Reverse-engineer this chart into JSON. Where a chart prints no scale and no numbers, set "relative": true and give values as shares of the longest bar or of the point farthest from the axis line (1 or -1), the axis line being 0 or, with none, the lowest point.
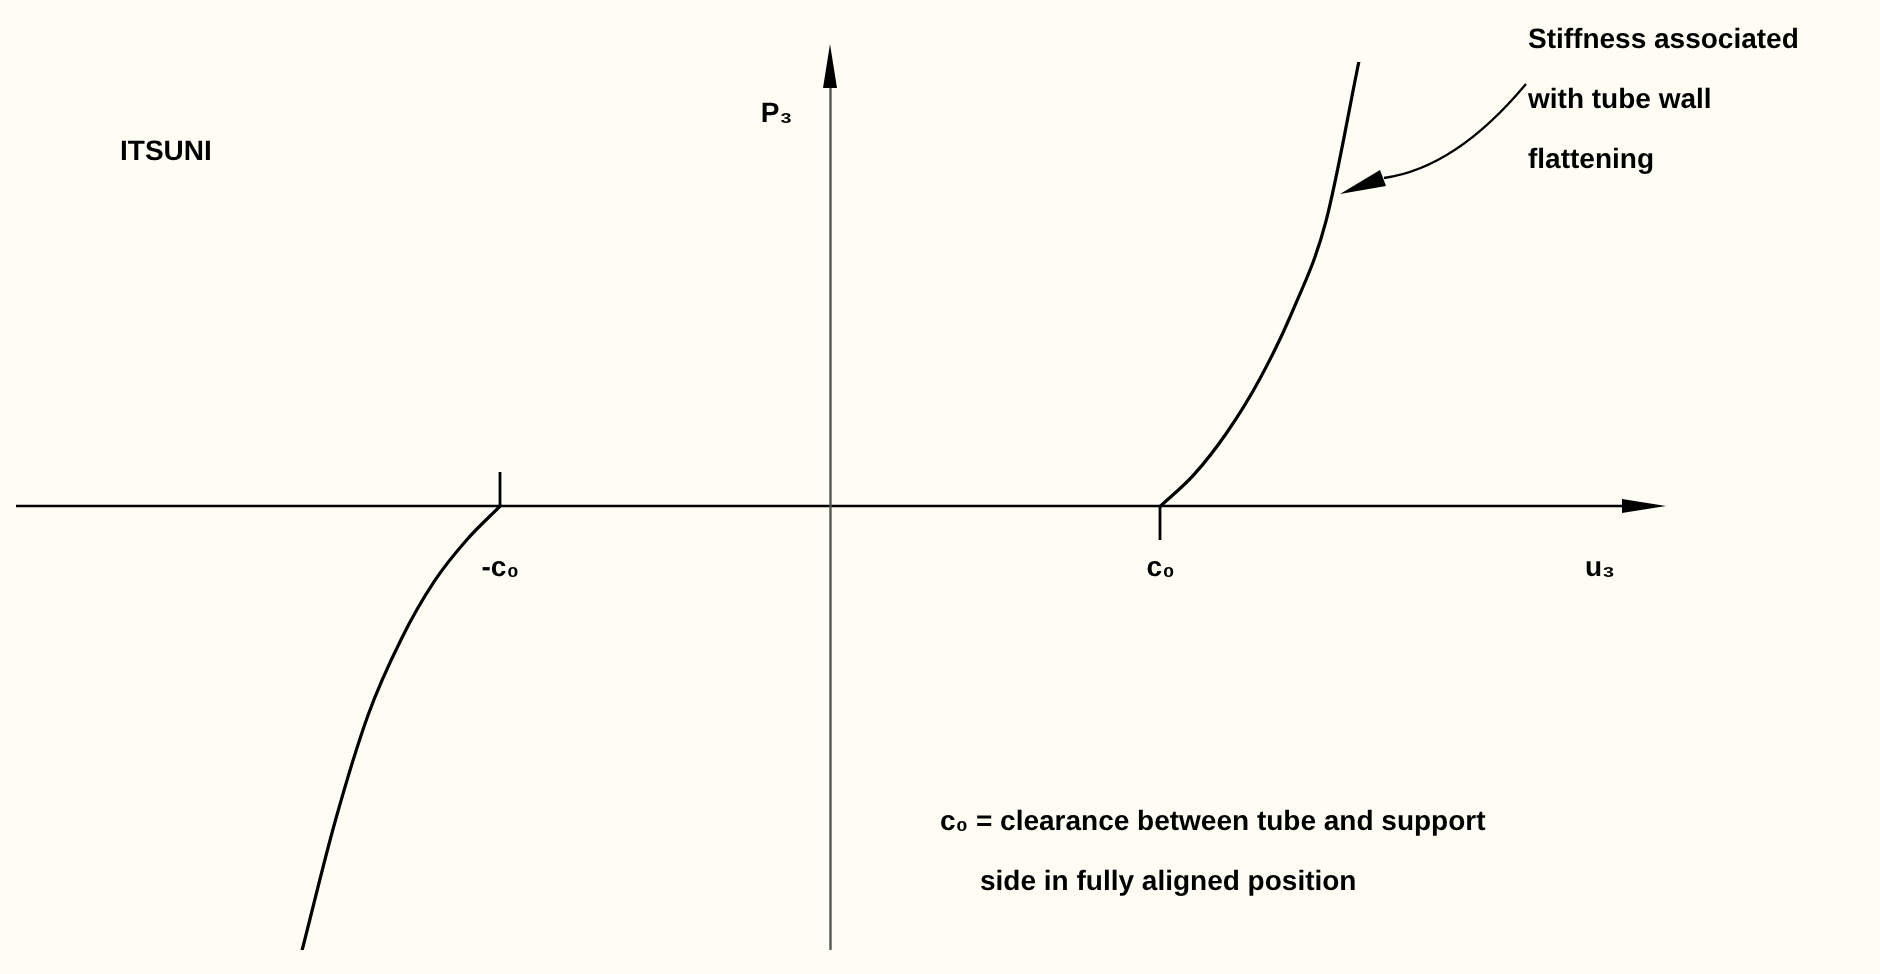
{
  "chart_data": {
    "type": "line",
    "relative": true,
    "xlabel": "u₃",
    "ylabel": "P₃",
    "categories": [
      null,
      null,
      null,
      null,
      null,
      null,
      null,
      null,
      null,
      null,
      null,
      null,
      null,
      null,
      "-c₀",
      null,
      null,
      null,
      null,
      null,
      null,
      null,
      null,
      null,
      null,
      null,
      null,
      null,
      null,
      null,
      null,
      null,
      null,
      null,
      "c₀",
      null,
      null,
      null,
      null,
      null,
      null,
      null,
      null,
      null,
      null,
      null,
      null,
      null,
      null,
      null
    ],
    "series": [
      {
        "color": "#000000",
        "values": [
          null,
          null,
          null,
          null,
          null,
          null,
          null,
          null,
          -1,
          -0.71,
          -0.47,
          -0.3,
          -0.17,
          -0.075,
          0,
          null,
          null,
          null,
          null,
          null,
          null,
          null,
          null,
          null,
          null,
          null,
          null,
          null,
          null,
          null,
          null,
          null,
          null,
          null,
          null,
          null,
          null,
          null,
          null,
          null,
          null,
          null,
          null,
          null,
          null,
          null,
          null,
          null,
          null,
          null
        ]
      },
      {
        "color": "#000000",
        "values": [
          null,
          null,
          null,
          null,
          null,
          null,
          null,
          null,
          null,
          null,
          null,
          null,
          null,
          null,
          null,
          null,
          null,
          null,
          null,
          null,
          null,
          null,
          null,
          null,
          null,
          null,
          null,
          null,
          null,
          null,
          null,
          null,
          null,
          null,
          0,
          0.07,
          0.165,
          0.286,
          0.44,
          0.64,
          1,
          null,
          null,
          null,
          null,
          null,
          null,
          null,
          null,
          null
        ]
      }
    ],
    "annotations": [
      "ITSUNI",
      "Stiffness associated with tube wall flattening",
      "c₀ = clearance between tube and support side in fully aligned position"
    ],
    "legend": false,
    "marker": "none",
    "line_style": "solid"
  }
}
